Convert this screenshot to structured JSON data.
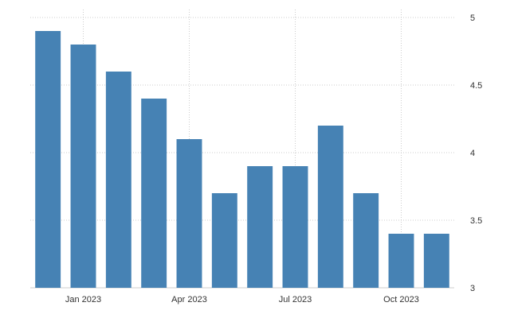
{
  "chart_data": {
    "type": "bar",
    "categories": [
      "2022-12",
      "2023-01",
      "2023-02",
      "2023-03",
      "2023-04",
      "2023-05",
      "2023-06",
      "2023-07",
      "2023-08",
      "2023-09",
      "2023-10",
      "2023-11"
    ],
    "values": [
      4.9,
      4.8,
      4.6,
      4.4,
      4.1,
      3.7,
      3.9,
      3.9,
      4.2,
      3.7,
      3.4,
      3.4
    ],
    "ylim": [
      3,
      5
    ],
    "yticks": [
      3,
      3.5,
      4,
      4.5,
      5
    ],
    "ytick_labels": [
      "3",
      "3.5",
      "4",
      "4.5",
      "5"
    ],
    "xticks": [
      {
        "category": "2023-01",
        "label": "Jan 2023"
      },
      {
        "category": "2023-04",
        "label": "Apr 2023"
      },
      {
        "category": "2023-07",
        "label": "Jul 2023"
      },
      {
        "category": "2023-10",
        "label": "Oct 2023"
      }
    ],
    "y_axis_position": "right",
    "grid": true,
    "bar_color": "#4682b4",
    "grid_color": "#cccccc"
  }
}
